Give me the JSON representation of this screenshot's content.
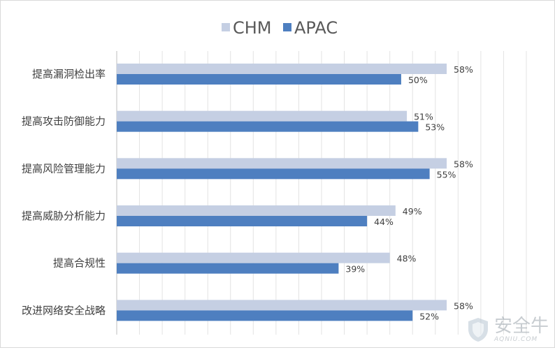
{
  "chart_data": {
    "type": "bar",
    "orientation": "horizontal",
    "categories": [
      "提高漏洞检出率",
      "提高攻击防御能力",
      "提高风险管理能力",
      "提高威胁分析能力",
      "提高合规性",
      "改进网络安全战略"
    ],
    "series": [
      {
        "name": "CHM",
        "values": [
          58,
          51,
          58,
          49,
          48,
          58
        ],
        "labels": [
          "58%",
          "51%",
          "58%",
          "49%",
          "48%",
          "58%"
        ],
        "color": "#c5cfe3"
      },
      {
        "name": "APAC",
        "values": [
          50,
          53,
          55,
          44,
          39,
          52
        ],
        "labels": [
          "50%",
          "53%",
          "55%",
          "44%",
          "39%",
          "52%"
        ],
        "color": "#4e7fc0"
      }
    ],
    "xlim": [
      0,
      72
    ],
    "grid": true,
    "legend_position": "top"
  },
  "watermark": {
    "cn": "安全牛",
    "en": "AQNIU.COM"
  }
}
